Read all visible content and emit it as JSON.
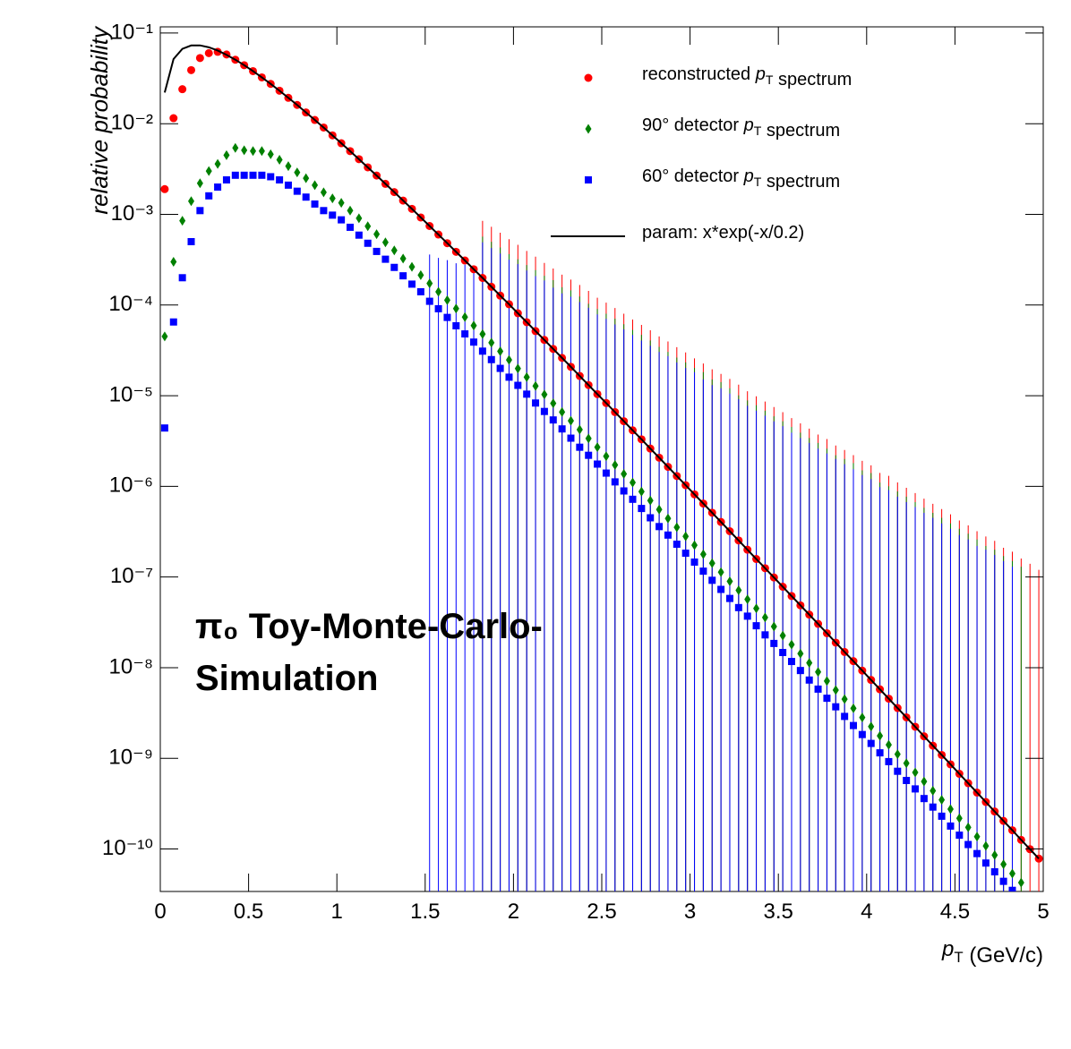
{
  "chart_data": {
    "type": "scatter",
    "log_y": true,
    "legend": "upper right",
    "x_label": "pT (GeV/c)",
    "y_label": "relative probability",
    "annotation": [
      "π₀ Toy-Monte-Carlo-",
      "Simulation"
    ],
    "xlim": [
      0,
      5
    ],
    "xticks": [
      0,
      0.5,
      1,
      1.5,
      2,
      2.5,
      3,
      3.5,
      4,
      4.5,
      5
    ],
    "ylim": [
      3.4e-11,
      0.117
    ],
    "yticks": [
      {
        "value": 1e-10,
        "label": "10⁻¹⁰"
      },
      {
        "value": 1e-09,
        "label": "10⁻⁹"
      },
      {
        "value": 1e-08,
        "label": "10⁻⁸"
      },
      {
        "value": 1e-07,
        "label": "10⁻⁷"
      },
      {
        "value": 1e-06,
        "label": "10⁻⁶"
      },
      {
        "value": 1e-05,
        "label": "10⁻⁵"
      },
      {
        "value": 0.0001,
        "label": "10⁻⁴"
      },
      {
        "value": 0.001,
        "label": "10⁻³"
      },
      {
        "value": 0.01,
        "label": "10⁻²"
      },
      {
        "value": 0.1,
        "label": "10⁻¹"
      }
    ],
    "x": [
      0.025,
      0.075,
      0.125,
      0.175,
      0.225,
      0.275,
      0.325,
      0.375,
      0.425,
      0.475,
      0.525,
      0.575,
      0.625,
      0.675,
      0.725,
      0.775,
      0.825,
      0.875,
      0.925,
      0.975,
      1.025,
      1.075,
      1.125,
      1.175,
      1.225,
      1.275,
      1.325,
      1.375,
      1.425,
      1.475,
      1.525,
      1.575,
      1.625,
      1.675,
      1.725,
      1.775,
      1.825,
      1.875,
      1.925,
      1.975,
      2.025,
      2.075,
      2.125,
      2.175,
      2.225,
      2.275,
      2.325,
      2.375,
      2.425,
      2.475,
      2.525,
      2.575,
      2.625,
      2.675,
      2.725,
      2.775,
      2.825,
      2.875,
      2.925,
      2.975,
      3.025,
      3.075,
      3.125,
      3.175,
      3.225,
      3.275,
      3.325,
      3.375,
      3.425,
      3.475,
      3.525,
      3.575,
      3.625,
      3.675,
      3.725,
      3.775,
      3.825,
      3.875,
      3.925,
      3.975,
      4.025,
      4.075,
      4.125,
      4.175,
      4.225,
      4.275,
      4.325,
      4.375,
      4.425,
      4.475,
      4.525,
      4.575,
      4.625,
      4.675,
      4.725,
      4.775,
      4.825,
      4.875,
      4.925,
      4.975
    ],
    "series": [
      {
        "name": "reconstructed pT spectrum",
        "color": "#ff0000",
        "marker": "circle",
        "values": [
          0.0019,
          0.0115,
          0.024,
          0.039,
          0.053,
          0.06,
          0.062,
          0.058,
          0.0508,
          0.0442,
          0.038,
          0.0324,
          0.0275,
          0.0231,
          0.0193,
          0.0161,
          0.0133,
          0.011,
          0.00907,
          0.00744,
          0.00609,
          0.00498,
          0.00406,
          0.0033,
          0.00268,
          0.00217,
          0.00176,
          0.00142,
          0.00115,
          0.000924,
          0.000744,
          0.000599,
          0.000481,
          0.000386,
          0.00031,
          0.000248,
          0.000199,
          0.000159,
          0.000127,
          0.000102,
          8.11e-05,
          6.47e-05,
          5.16e-05,
          4.12e-05,
          3.28e-05,
          2.61e-05,
          2.08e-05,
          1.65e-05,
          1.31e-05,
          1.04e-05,
          8.3e-06,
          6.59e-06,
          5.23e-06,
          4.15e-06,
          3.3e-06,
          2.61e-06,
          2.07e-06,
          1.64e-06,
          1.3e-06,
          1.03e-06,
          8.16e-07,
          6.46e-07,
          5.12e-07,
          4.05e-07,
          3.2e-07,
          2.53e-07,
          2e-07,
          1.58e-07,
          1.25e-07,
          9.89e-08,
          7.81e-08,
          6.17e-08,
          4.87e-08,
          3.85e-08,
          3.04e-08,
          2.4e-08,
          1.89e-08,
          1.49e-08,
          1.18e-08,
          9.28e-09,
          7.32e-09,
          5.77e-09,
          4.55e-09,
          3.59e-09,
          2.83e-09,
          2.23e-09,
          1.75e-09,
          1.38e-09,
          1.09e-09,
          8.58e-10,
          6.75e-10,
          5.32e-10,
          4.19e-10,
          3.3e-10,
          2.59e-10,
          2.04e-10,
          1.61e-10,
          1.26e-10,
          9.95e-11,
          7.83e-11
        ],
        "errors": [
          0,
          0,
          0,
          0,
          0,
          0,
          0,
          0,
          0,
          0,
          0,
          0,
          0,
          0,
          0,
          0,
          0,
          0,
          0,
          0,
          0,
          0,
          0,
          0,
          0,
          0,
          0,
          0,
          0,
          0,
          0,
          0,
          0,
          0,
          0,
          0,
          0.00065,
          0.00057,
          0.0005,
          0.00043,
          0.00038,
          0.00033,
          0.00029,
          0.00025,
          0.00022,
          0.00019,
          0.00017,
          0.00015,
          0.00013,
          0.00011,
          9.8e-05,
          8.6e-05,
          7.5e-05,
          6.5e-05,
          5.7e-05,
          5e-05,
          4.3e-05,
          3.8e-05,
          3.3e-05,
          2.9e-05,
          2.5e-05,
          2.2e-05,
          1.9e-05,
          1.7e-05,
          1.5e-05,
          1.3e-05,
          1.1e-05,
          9.7e-06,
          8.5e-06,
          7.4e-06,
          6.5e-06,
          5.6e-06,
          4.9e-06,
          4.3e-06,
          3.7e-06,
          3.3e-06,
          2.8e-06,
          2.5e-06,
          2.2e-06,
          1.9e-06,
          1.7e-06,
          1.4e-06,
          1.3e-06,
          1.1e-06,
          9.6e-07,
          8.4e-07,
          7.3e-07,
          6.4e-07,
          5.6e-07,
          4.9e-07,
          4.2e-07,
          3.7e-07,
          3.2e-07,
          2.8e-07,
          2.5e-07,
          2.1e-07,
          1.9e-07,
          1.6e-07,
          1.4e-07,
          1.2e-07
        ]
      },
      {
        "name": "90° detector pT spectrum",
        "color": "#008000",
        "marker": "diamond",
        "values": [
          4.5e-05,
          0.0003,
          0.00085,
          0.0014,
          0.0022,
          0.003,
          0.0036,
          0.0045,
          0.0054,
          0.0051,
          0.005,
          0.005,
          0.0046,
          0.004,
          0.0034,
          0.0029,
          0.0025,
          0.0021,
          0.00175,
          0.0015,
          0.00134,
          0.0011,
          0.000904,
          0.000739,
          0.000604,
          0.000492,
          0.0004,
          0.000325,
          0.000264,
          0.000214,
          0.000173,
          0.00014,
          0.000113,
          9.14e-05,
          7.36e-05,
          5.94e-05,
          4.78e-05,
          3.84e-05,
          3.09e-05,
          2.48e-05,
          1.99e-05,
          1.6e-05,
          1.28e-05,
          1.03e-05,
          8.24e-06,
          6.59e-06,
          5.28e-06,
          4.22e-06,
          3.37e-06,
          2.7e-06,
          2.15e-06,
          1.72e-06,
          1.37e-06,
          1.1e-06,
          8.75e-07,
          6.97e-07,
          5.55e-07,
          4.43e-07,
          3.53e-07,
          2.81e-07,
          2.24e-07,
          1.78e-07,
          1.42e-07,
          1.13e-07,
          8.96e-08,
          7.14e-08,
          5.67e-08,
          4.5e-08,
          3.58e-08,
          2.84e-08,
          2.26e-08,
          1.8e-08,
          1.43e-08,
          1.13e-08,
          8.98e-09,
          7.12e-09,
          5.66e-09,
          4.49e-09,
          3.56e-09,
          2.82e-09,
          2.24e-09,
          1.77e-09,
          1.41e-09,
          1.11e-09,
          8.83e-10,
          7e-10,
          5.55e-10,
          4.39e-10,
          3.48e-10,
          2.75e-10,
          2.18e-10,
          1.73e-10,
          1.37e-10,
          1.08e-10,
          8.57e-11,
          6.78e-11,
          5.36e-11,
          4.25e-11,
          null,
          null
        ],
        "errors": [
          0,
          0,
          0,
          0,
          0,
          0,
          0,
          0,
          0,
          0,
          0,
          0,
          0,
          0,
          0,
          0,
          0,
          0,
          0,
          0,
          0,
          0,
          0,
          0,
          0,
          0,
          0,
          0,
          0,
          0,
          0,
          0,
          0,
          0,
          0,
          0,
          0.00052,
          0.00046,
          0.0004,
          0.00034,
          0.0003,
          0.00026,
          0.00023,
          0.0002,
          0.00018,
          0.00015,
          0.00014,
          0.00012,
          0.0001,
          8.8e-05,
          7.8e-05,
          6.9e-05,
          6e-05,
          5.2e-05,
          4.6e-05,
          4e-05,
          3.4e-05,
          3e-05,
          2.6e-05,
          2.3e-05,
          2e-05,
          1.8e-05,
          1.5e-05,
          1.4e-05,
          1.2e-05,
          1e-05,
          8.8e-06,
          7.8e-06,
          6.8e-06,
          5.9e-06,
          5.2e-06,
          4.5e-06,
          3.9e-06,
          3.4e-06,
          3e-06,
          2.6e-06,
          2.2e-06,
          2e-06,
          1.8e-06,
          1.5e-06,
          1.4e-06,
          1.1e-06,
          1e-06,
          8.8e-07,
          7.7e-07,
          6.7e-07,
          5.8e-07,
          5.1e-07,
          4.5e-07,
          3.9e-07,
          3.4e-07,
          3e-07,
          2.6e-07,
          2.2e-07,
          2e-07,
          1.7e-07,
          1.5e-07,
          1.3e-07,
          null,
          null
        ]
      },
      {
        "name": "60° detector pT spectrum",
        "color": "#0000ff",
        "marker": "square",
        "values": [
          4.4e-06,
          6.5e-05,
          0.0002,
          0.0005,
          0.0011,
          0.0016,
          0.002,
          0.0024,
          0.0027,
          0.0027,
          0.0027,
          0.0027,
          0.0026,
          0.0024,
          0.0021,
          0.0018,
          0.00155,
          0.0013,
          0.0011,
          0.00098,
          0.00087,
          0.00072,
          0.00059,
          0.00048,
          0.00039,
          0.00032,
          0.00026,
          0.00021,
          0.00017,
          0.00014,
          0.00011,
          9.1e-05,
          7.3e-05,
          5.9e-05,
          4.8e-05,
          3.9e-05,
          3.1e-05,
          2.5e-05,
          2e-05,
          1.6e-05,
          1.3e-05,
          1.04e-05,
          8.3e-06,
          6.7e-06,
          5.4e-06,
          4.3e-06,
          3.4e-06,
          2.7e-06,
          2.2e-06,
          1.76e-06,
          1.4e-06,
          1.12e-06,
          8.9e-07,
          7.2e-07,
          5.7e-07,
          4.5e-07,
          3.6e-07,
          2.9e-07,
          2.3e-07,
          1.83e-07,
          1.46e-07,
          1.16e-07,
          9.2e-08,
          7.3e-08,
          5.8e-08,
          4.6e-08,
          3.7e-08,
          2.9e-08,
          2.3e-08,
          1.85e-08,
          1.47e-08,
          1.17e-08,
          9.3e-09,
          7.3e-09,
          5.8e-09,
          4.6e-09,
          3.7e-09,
          2.9e-09,
          2.3e-09,
          1.83e-09,
          1.46e-09,
          1.15e-09,
          9.2e-10,
          7.2e-10,
          5.7e-10,
          4.6e-10,
          3.6e-10,
          2.9e-10,
          2.3e-10,
          1.79e-10,
          1.42e-10,
          1.12e-10,
          8.9e-11,
          7e-11,
          5.6e-11,
          4.4e-11,
          3.5e-11,
          null,
          null,
          null
        ],
        "errors": [
          0,
          0,
          0,
          0,
          0,
          0,
          0,
          0,
          0,
          0,
          0,
          0,
          0,
          0,
          0,
          0,
          0,
          0,
          0,
          0,
          0,
          0,
          0,
          0,
          0,
          0,
          0,
          0,
          0,
          0,
          0.00025,
          0.00024,
          0.00024,
          0.00023,
          0.00023,
          0.00022,
          0.00046,
          0.0004,
          0.00035,
          0.0003,
          0.00027,
          0.00023,
          0.0002,
          0.00018,
          0.00015,
          0.00013,
          0.00012,
          0.000105,
          9.1e-05,
          7.7e-05,
          6.9e-05,
          6e-05,
          5.3e-05,
          4.6e-05,
          4e-05,
          3.5e-05,
          3e-05,
          2.7e-05,
          2.3e-05,
          2e-05,
          1.8e-05,
          1.5e-05,
          1.3e-05,
          1.2e-05,
          1.05e-05,
          9.1e-06,
          7.7e-06,
          6.8e-06,
          6e-06,
          5.2e-06,
          4.6e-06,
          3.9e-06,
          3.4e-06,
          3e-06,
          2.6e-06,
          2.3e-06,
          2e-06,
          1.75e-06,
          1.54e-06,
          1.33e-06,
          1.2e-06,
          9.8e-07,
          9.1e-07,
          7.7e-07,
          6.7e-07,
          5.9e-07,
          5.1e-07,
          4.5e-07,
          3.9e-07,
          3.4e-07,
          2.9e-07,
          2.6e-07,
          2.2e-07,
          2e-07,
          1.75e-07,
          1.5e-07,
          1.3e-07,
          null,
          null,
          null
        ]
      },
      {
        "name": "param: x*exp(-x/0.2)",
        "color": "#000000",
        "marker": "line",
        "values": [
          0.0221,
          0.0516,
          0.0669,
          0.0729,
          0.0731,
          0.0696,
          0.0641,
          0.0575,
          0.0508,
          0.0442,
          0.038,
          0.0324,
          0.0275,
          0.0231,
          0.0193,
          0.0161,
          0.0133,
          0.011,
          0.00907,
          0.00744,
          0.00609,
          0.00498,
          0.00406,
          0.0033,
          0.00268,
          0.00217,
          0.00176,
          0.00142,
          0.00115,
          0.000924,
          0.000744,
          0.000599,
          0.000481,
          0.000386,
          0.00031,
          0.000248,
          0.000199,
          0.000159,
          0.000127,
          0.000102,
          8.11e-05,
          6.47e-05,
          5.16e-05,
          4.12e-05,
          3.28e-05,
          2.61e-05,
          2.08e-05,
          1.65e-05,
          1.31e-05,
          1.04e-05,
          8.3e-06,
          6.59e-06,
          5.23e-06,
          4.15e-06,
          3.3e-06,
          2.61e-06,
          2.07e-06,
          1.64e-06,
          1.3e-06,
          1.03e-06,
          8.16e-07,
          6.46e-07,
          5.12e-07,
          4.05e-07,
          3.2e-07,
          2.53e-07,
          2e-07,
          1.58e-07,
          1.25e-07,
          9.89e-08,
          7.81e-08,
          6.17e-08,
          4.87e-08,
          3.85e-08,
          3.04e-08,
          2.4e-08,
          1.89e-08,
          1.49e-08,
          1.18e-08,
          9.28e-09,
          7.32e-09,
          5.77e-09,
          4.55e-09,
          3.59e-09,
          2.83e-09,
          2.23e-09,
          1.75e-09,
          1.38e-09,
          1.09e-09,
          8.58e-10,
          6.75e-10,
          5.32e-10,
          4.19e-10,
          3.3e-10,
          2.59e-10,
          2.04e-10,
          1.61e-10,
          1.26e-10,
          9.95e-11,
          7.83e-11
        ]
      }
    ]
  }
}
